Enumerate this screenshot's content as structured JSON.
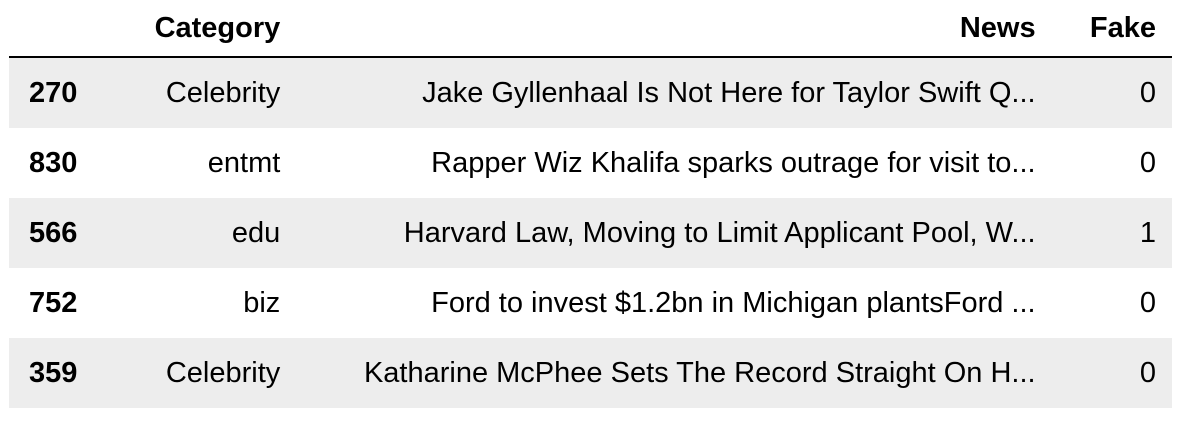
{
  "table": {
    "columns": {
      "index": "",
      "category": "Category",
      "news": "News",
      "fake": "Fake"
    },
    "rows": [
      {
        "index": "270",
        "category": "Celebrity",
        "news": "Jake Gyllenhaal Is Not Here for Taylor Swift Q...",
        "fake": "0"
      },
      {
        "index": "830",
        "category": "entmt",
        "news": "Rapper Wiz Khalifa sparks outrage for visit to...",
        "fake": "0"
      },
      {
        "index": "566",
        "category": "edu",
        "news": "Harvard Law, Moving to Limit Applicant Pool, W...",
        "fake": "1"
      },
      {
        "index": "752",
        "category": "biz",
        "news": "Ford to invest $1.2bn in Michigan plantsFord ...",
        "fake": "0"
      },
      {
        "index": "359",
        "category": "Celebrity",
        "news": "Katharine McPhee Sets The Record Straight On H...",
        "fake": "0"
      }
    ]
  }
}
